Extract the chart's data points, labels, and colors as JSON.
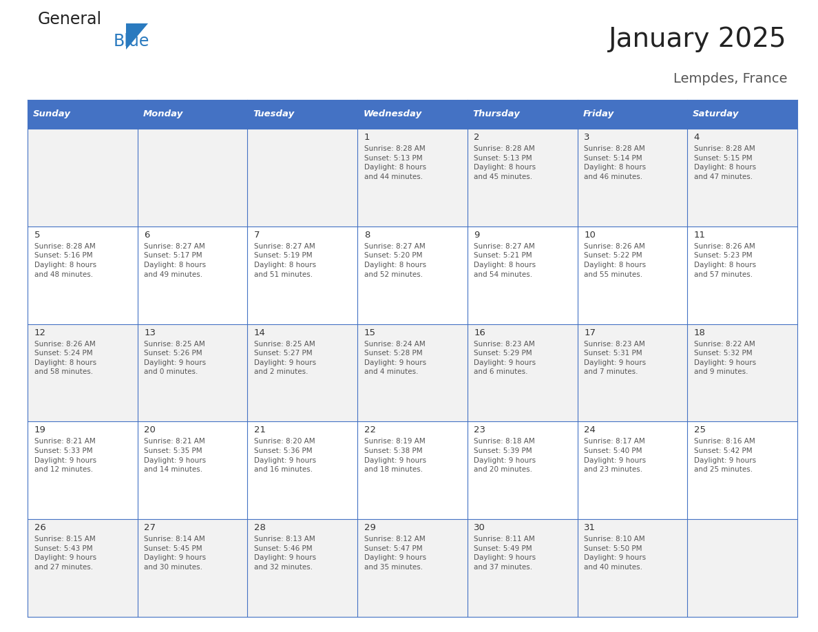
{
  "title": "January 2025",
  "subtitle": "Lempdes, France",
  "days_of_week": [
    "Sunday",
    "Monday",
    "Tuesday",
    "Wednesday",
    "Thursday",
    "Friday",
    "Saturday"
  ],
  "header_bg": "#4472C4",
  "header_text": "#FFFFFF",
  "row_bg_even": "#F2F2F2",
  "row_bg_odd": "#FFFFFF",
  "cell_border": "#4472C4",
  "day_number_color": "#333333",
  "cell_text_color": "#555555",
  "title_color": "#222222",
  "subtitle_color": "#555555",
  "logo_general_color": "#222222",
  "logo_blue_color": "#2A7ABF",
  "calendar": [
    [
      {
        "day": 0,
        "text": ""
      },
      {
        "day": 0,
        "text": ""
      },
      {
        "day": 0,
        "text": ""
      },
      {
        "day": 1,
        "text": "Sunrise: 8:28 AM\nSunset: 5:13 PM\nDaylight: 8 hours\nand 44 minutes."
      },
      {
        "day": 2,
        "text": "Sunrise: 8:28 AM\nSunset: 5:13 PM\nDaylight: 8 hours\nand 45 minutes."
      },
      {
        "day": 3,
        "text": "Sunrise: 8:28 AM\nSunset: 5:14 PM\nDaylight: 8 hours\nand 46 minutes."
      },
      {
        "day": 4,
        "text": "Sunrise: 8:28 AM\nSunset: 5:15 PM\nDaylight: 8 hours\nand 47 minutes."
      }
    ],
    [
      {
        "day": 5,
        "text": "Sunrise: 8:28 AM\nSunset: 5:16 PM\nDaylight: 8 hours\nand 48 minutes."
      },
      {
        "day": 6,
        "text": "Sunrise: 8:27 AM\nSunset: 5:17 PM\nDaylight: 8 hours\nand 49 minutes."
      },
      {
        "day": 7,
        "text": "Sunrise: 8:27 AM\nSunset: 5:19 PM\nDaylight: 8 hours\nand 51 minutes."
      },
      {
        "day": 8,
        "text": "Sunrise: 8:27 AM\nSunset: 5:20 PM\nDaylight: 8 hours\nand 52 minutes."
      },
      {
        "day": 9,
        "text": "Sunrise: 8:27 AM\nSunset: 5:21 PM\nDaylight: 8 hours\nand 54 minutes."
      },
      {
        "day": 10,
        "text": "Sunrise: 8:26 AM\nSunset: 5:22 PM\nDaylight: 8 hours\nand 55 minutes."
      },
      {
        "day": 11,
        "text": "Sunrise: 8:26 AM\nSunset: 5:23 PM\nDaylight: 8 hours\nand 57 minutes."
      }
    ],
    [
      {
        "day": 12,
        "text": "Sunrise: 8:26 AM\nSunset: 5:24 PM\nDaylight: 8 hours\nand 58 minutes."
      },
      {
        "day": 13,
        "text": "Sunrise: 8:25 AM\nSunset: 5:26 PM\nDaylight: 9 hours\nand 0 minutes."
      },
      {
        "day": 14,
        "text": "Sunrise: 8:25 AM\nSunset: 5:27 PM\nDaylight: 9 hours\nand 2 minutes."
      },
      {
        "day": 15,
        "text": "Sunrise: 8:24 AM\nSunset: 5:28 PM\nDaylight: 9 hours\nand 4 minutes."
      },
      {
        "day": 16,
        "text": "Sunrise: 8:23 AM\nSunset: 5:29 PM\nDaylight: 9 hours\nand 6 minutes."
      },
      {
        "day": 17,
        "text": "Sunrise: 8:23 AM\nSunset: 5:31 PM\nDaylight: 9 hours\nand 7 minutes."
      },
      {
        "day": 18,
        "text": "Sunrise: 8:22 AM\nSunset: 5:32 PM\nDaylight: 9 hours\nand 9 minutes."
      }
    ],
    [
      {
        "day": 19,
        "text": "Sunrise: 8:21 AM\nSunset: 5:33 PM\nDaylight: 9 hours\nand 12 minutes."
      },
      {
        "day": 20,
        "text": "Sunrise: 8:21 AM\nSunset: 5:35 PM\nDaylight: 9 hours\nand 14 minutes."
      },
      {
        "day": 21,
        "text": "Sunrise: 8:20 AM\nSunset: 5:36 PM\nDaylight: 9 hours\nand 16 minutes."
      },
      {
        "day": 22,
        "text": "Sunrise: 8:19 AM\nSunset: 5:38 PM\nDaylight: 9 hours\nand 18 minutes."
      },
      {
        "day": 23,
        "text": "Sunrise: 8:18 AM\nSunset: 5:39 PM\nDaylight: 9 hours\nand 20 minutes."
      },
      {
        "day": 24,
        "text": "Sunrise: 8:17 AM\nSunset: 5:40 PM\nDaylight: 9 hours\nand 23 minutes."
      },
      {
        "day": 25,
        "text": "Sunrise: 8:16 AM\nSunset: 5:42 PM\nDaylight: 9 hours\nand 25 minutes."
      }
    ],
    [
      {
        "day": 26,
        "text": "Sunrise: 8:15 AM\nSunset: 5:43 PM\nDaylight: 9 hours\nand 27 minutes."
      },
      {
        "day": 27,
        "text": "Sunrise: 8:14 AM\nSunset: 5:45 PM\nDaylight: 9 hours\nand 30 minutes."
      },
      {
        "day": 28,
        "text": "Sunrise: 8:13 AM\nSunset: 5:46 PM\nDaylight: 9 hours\nand 32 minutes."
      },
      {
        "day": 29,
        "text": "Sunrise: 8:12 AM\nSunset: 5:47 PM\nDaylight: 9 hours\nand 35 minutes."
      },
      {
        "day": 30,
        "text": "Sunrise: 8:11 AM\nSunset: 5:49 PM\nDaylight: 9 hours\nand 37 minutes."
      },
      {
        "day": 31,
        "text": "Sunrise: 8:10 AM\nSunset: 5:50 PM\nDaylight: 9 hours\nand 40 minutes."
      },
      {
        "day": 0,
        "text": ""
      }
    ]
  ],
  "fig_width": 11.88,
  "fig_height": 9.18,
  "dpi": 100
}
